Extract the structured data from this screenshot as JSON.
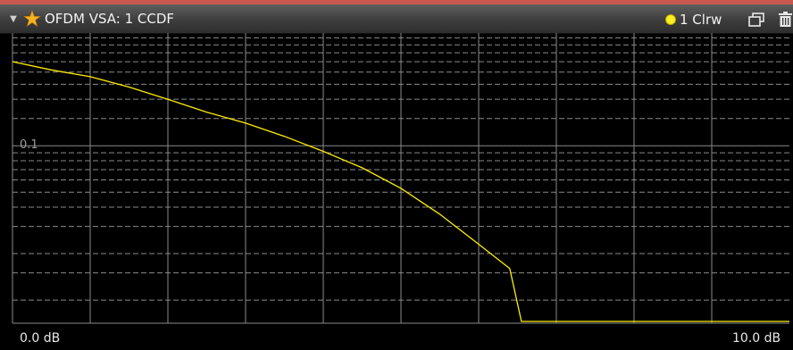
{
  "window": {
    "title": "OFDM VSA: 1 CCDF",
    "trace_label": "1 Clrw",
    "icons": {
      "dropdown": "dropdown-arrow-icon",
      "measurement": "star-icon",
      "trace_marker": "yellow-dot-icon",
      "restore": "window-restore-icon",
      "delete": "trash-icon"
    }
  },
  "colors": {
    "trace": "#ffee00",
    "grid": "#8a8a8a",
    "background": "#000000",
    "accent_bar": "#c8574f"
  },
  "chart_data": {
    "type": "line",
    "title": "",
    "xlabel": "",
    "ylabel": "",
    "x_unit": "dB",
    "xlim": [
      0,
      10
    ],
    "x_start_label": "0.0 dB",
    "x_stop_label": "10.0 dB",
    "y_scale": "log",
    "y_tick_labels": [
      "0.1"
    ],
    "grid": true,
    "series": [
      {
        "values": [
          [
            0.0,
            0.35
          ],
          [
            0.5,
            0.31
          ],
          [
            1.0,
            0.28
          ],
          [
            1.5,
            0.24
          ],
          [
            2.0,
            0.2
          ],
          [
            2.5,
            0.165
          ],
          [
            3.0,
            0.14
          ],
          [
            3.5,
            0.115
          ],
          [
            4.0,
            0.092
          ],
          [
            4.5,
            0.072
          ],
          [
            5.0,
            0.053
          ],
          [
            5.5,
            0.036
          ],
          [
            6.0,
            0.023
          ],
          [
            6.4,
            0.016
          ],
          [
            6.55,
            0.014
          ],
          [
            10.0,
            0.014
          ]
        ]
      }
    ]
  }
}
